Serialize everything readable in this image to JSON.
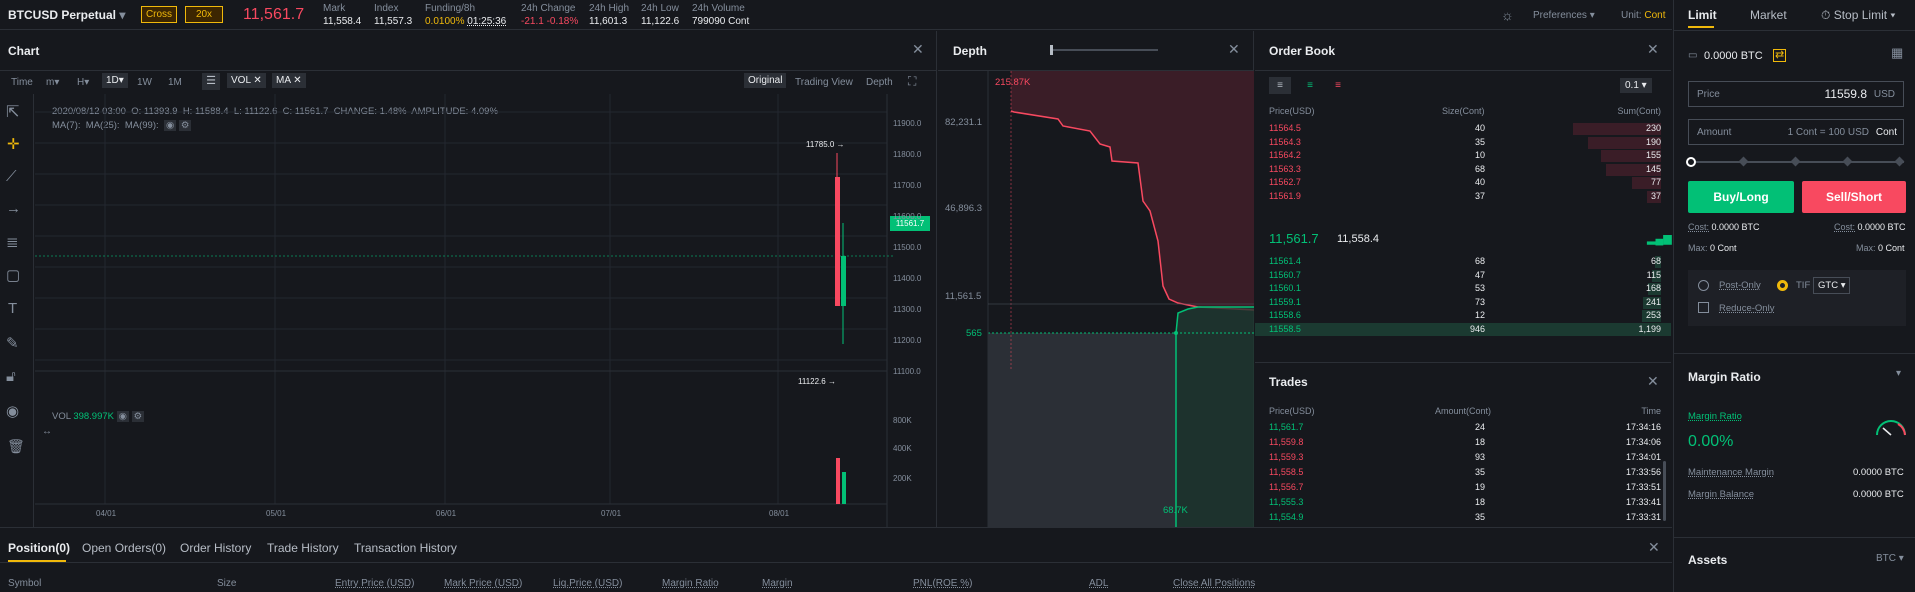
{
  "header": {
    "symbol": "BTCUSD Perpetual",
    "mode": "Cross",
    "leverage": "20x",
    "last_price": "11,561.7",
    "stats": [
      {
        "label": "Mark",
        "value": "11,558.4"
      },
      {
        "label": "Index",
        "value": "11,557.3"
      },
      {
        "label": "Funding/8h",
        "value": "0.0100%",
        "value2": "01:25:36"
      },
      {
        "label": "24h Change",
        "value": "-21.1 -0.18%"
      },
      {
        "label": "24h High",
        "value": "11,601.3"
      },
      {
        "label": "24h Low",
        "value": "11,122.6"
      },
      {
        "label": "24h Volume",
        "value": "799090 Cont"
      }
    ],
    "preferences": "Preferences",
    "unit_label": "Unit:",
    "unit_value": "Cont"
  },
  "chart": {
    "title": "Chart",
    "intervals": [
      "Time",
      "m",
      "H",
      "1D",
      "1W",
      "1M"
    ],
    "indicators": [
      "VOL",
      "MA"
    ],
    "views": [
      "Original",
      "Trading View",
      "Depth"
    ],
    "ohlc": "2020/08/12 03:00  O: 11393.9  H: 11588.4  L: 11122.6  C: 11561.7  CHANGE: 1.48%  AMPLITUDE: 4.09%",
    "ma": [
      "MA(7):",
      "MA(25):",
      "MA(99):"
    ],
    "y_ticks": [
      "11900.0",
      "11800.0",
      "11700.0",
      "11600.0",
      "11500.0",
      "11400.0",
      "11300.0",
      "11200.0",
      "11100.0"
    ],
    "current_tag": "11561.7",
    "high_mark": "11785.0",
    "low_mark": "11122.6",
    "vol_label": "VOL",
    "vol_value": "398.997K",
    "vol_ticks": [
      "800K",
      "400K",
      "200K"
    ],
    "x_ticks": [
      "04/01",
      "05/01",
      "06/01",
      "07/01",
      "08/01"
    ]
  },
  "depth": {
    "title": "Depth",
    "y_ticks": [
      "82,231.1",
      "46,896.3",
      "11,561.5"
    ],
    "top_tag": "215.87K",
    "left_tag": "565",
    "bottom_tag": "68.7K"
  },
  "orderbook": {
    "title": "Order Book",
    "precision": "0.1",
    "headers": [
      "Price(USD)",
      "Size(Cont)",
      "Sum(Cont)"
    ],
    "asks": [
      {
        "p": "11564.5",
        "s": "40",
        "t": "230",
        "d": 0.96
      },
      {
        "p": "11564.3",
        "s": "35",
        "t": "190",
        "d": 0.79
      },
      {
        "p": "11564.2",
        "s": "10",
        "t": "155",
        "d": 0.65
      },
      {
        "p": "11563.3",
        "s": "68",
        "t": "145",
        "d": 0.6
      },
      {
        "p": "11562.7",
        "s": "40",
        "t": "77",
        "d": 0.32
      },
      {
        "p": "11561.9",
        "s": "37",
        "t": "37",
        "d": 0.15
      }
    ],
    "last": "11,561.7",
    "mark": "11,558.4",
    "bids": [
      {
        "p": "11561.4",
        "s": "68",
        "t": "68",
        "d": 0.06
      },
      {
        "p": "11560.7",
        "s": "47",
        "t": "115",
        "d": 0.1
      },
      {
        "p": "11560.1",
        "s": "53",
        "t": "168",
        "d": 0.14
      },
      {
        "p": "11559.1",
        "s": "73",
        "t": "241",
        "d": 0.2
      },
      {
        "p": "11558.6",
        "s": "12",
        "t": "253",
        "d": 0.21
      },
      {
        "p": "11558.5",
        "s": "946",
        "t": "1,199",
        "d": 1.0
      }
    ]
  },
  "trades": {
    "title": "Trades",
    "headers": [
      "Price(USD)",
      "Amount(Cont)",
      "Time"
    ],
    "rows": [
      {
        "p": "11,561.7",
        "a": "24",
        "t": "17:34:16",
        "up": true
      },
      {
        "p": "11,559.8",
        "a": "18",
        "t": "17:34:06",
        "up": false
      },
      {
        "p": "11,559.3",
        "a": "93",
        "t": "17:34:01",
        "up": false
      },
      {
        "p": "11,558.5",
        "a": "35",
        "t": "17:33:56",
        "up": false
      },
      {
        "p": "11,556.7",
        "a": "19",
        "t": "17:33:51",
        "up": false
      },
      {
        "p": "11,555.3",
        "a": "18",
        "t": "17:33:41",
        "up": true
      },
      {
        "p": "11,554.9",
        "a": "35",
        "t": "17:33:31",
        "up": true
      }
    ]
  },
  "bottom": {
    "tabs": [
      "Position(0)",
      "Open Orders(0)",
      "Order History",
      "Trade History",
      "Transaction History"
    ],
    "cols": [
      "Symbol",
      "Size",
      "Entry Price (USD)",
      "Mark Price (USD)",
      "Liq.Price (USD)",
      "Margin Ratio",
      "Margin",
      "PNL(ROE %)",
      "ADL",
      "Close All Positions"
    ]
  },
  "order": {
    "tabs": [
      "Limit",
      "Market",
      "Stop Limit"
    ],
    "balance": "0.0000 BTC",
    "price_label": "Price",
    "price_value": "11559.8",
    "price_unit": "USD",
    "amount_label": "Amount",
    "amount_hint": "1 Cont = 100 USD",
    "amount_unit": "Cont",
    "buy": "Buy/Long",
    "sell": "Sell/Short",
    "cost_buy": "0.0000 BTC",
    "cost_sell": "0.0000 BTC",
    "cost_label": "Cost:",
    "max_label": "Max:",
    "max_buy": "0 Cont",
    "max_sell": "0 Cont",
    "post_only": "Post-Only",
    "tif": "TIF",
    "tif_value": "GTC",
    "reduce_only": "Reduce-Only"
  },
  "margin": {
    "title": "Margin Ratio",
    "ratio_label": "Margin Ratio",
    "ratio_value": "0.00%",
    "maint_label": "Maintenance Margin",
    "maint_value": "0.0000 BTC",
    "bal_label": "Margin Balance",
    "bal_value": "0.0000 BTC"
  },
  "assets": {
    "title": "Assets",
    "currency": "BTC"
  },
  "colors": {
    "up": "#02c076",
    "down": "#f84960",
    "accent": "#f0b90b",
    "bg": "#16181d"
  }
}
